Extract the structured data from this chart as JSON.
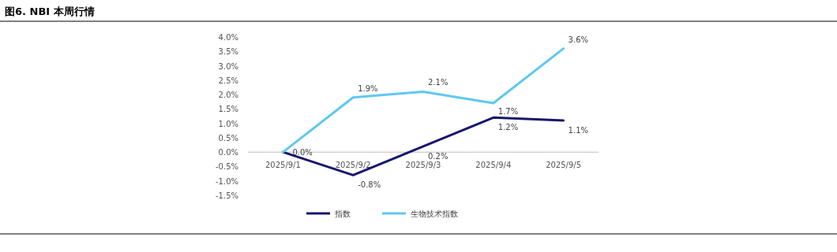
{
  "chart_data": {
    "type": "line",
    "title": "图6.  NBI 本周行情",
    "categories": [
      "2025/9/1",
      "2025/9/2",
      "2025/9/3",
      "2025/9/4",
      "2025/9/5"
    ],
    "series": [
      {
        "name": "指数",
        "color": "#16166e",
        "values": [
          0.0,
          -0.8,
          0.2,
          1.2,
          1.1
        ],
        "value_labels": [
          "0.0%",
          "-0.8%",
          "0.2%",
          "1.2%",
          "1.1%"
        ]
      },
      {
        "name": "生物技术指数",
        "color": "#5ec8f2",
        "values": [
          0.0,
          1.9,
          2.1,
          1.7,
          3.6
        ],
        "value_labels": [
          null,
          "1.9%",
          "2.1%",
          "1.7%",
          "3.6%"
        ]
      }
    ],
    "ylim": [
      -1.5,
      4.0
    ],
    "yticks": [
      {
        "value": -1.5,
        "label": "-1.5%"
      },
      {
        "value": -1.0,
        "label": "-1.0%"
      },
      {
        "value": -0.5,
        "label": "-0.5%"
      },
      {
        "value": 0,
        "label": "0.0%"
      },
      {
        "value": 0.5,
        "label": "0.5%"
      },
      {
        "value": 1.0,
        "label": "1.0%"
      },
      {
        "value": 1.5,
        "label": "1.5%"
      },
      {
        "value": 2.0,
        "label": "2.0%"
      },
      {
        "value": 2.5,
        "label": "2.5%"
      },
      {
        "value": 3.0,
        "label": "3.0%"
      },
      {
        "value": 3.5,
        "label": "3.5%"
      },
      {
        "value": 4.0,
        "label": "4.0%"
      }
    ],
    "grid": false,
    "legend": "bottom",
    "marker": "none",
    "line_style": "solid"
  }
}
